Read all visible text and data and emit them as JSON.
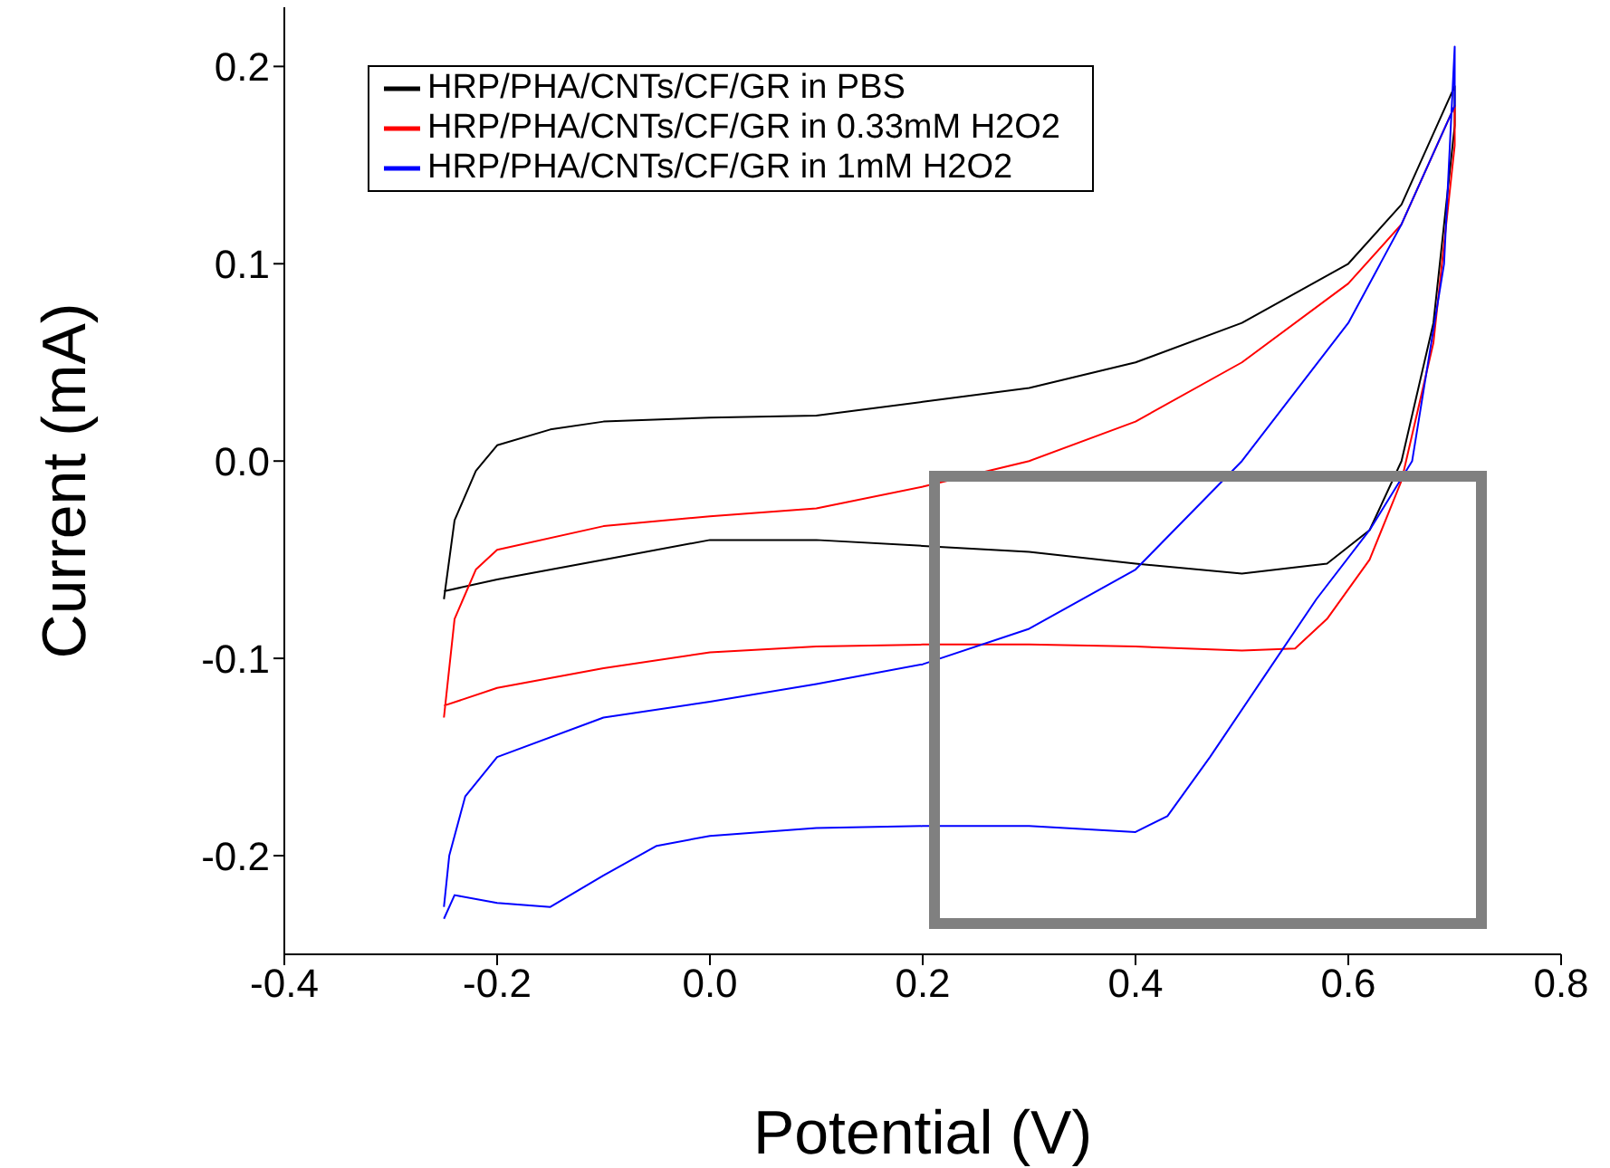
{
  "chart_data": {
    "type": "line",
    "xlabel": "Potential (V)",
    "ylabel": "Current (mA)",
    "xlim": [
      -0.4,
      0.8
    ],
    "xticks": [
      -0.4,
      -0.2,
      {
        "value": 0,
        "label": "0.0"
      },
      0.2,
      0.4,
      0.6,
      0.8
    ],
    "ylim": [
      -0.25,
      0.23
    ],
    "yticks": [
      -0.2,
      -0.1,
      {
        "value": 0,
        "label": "0.0"
      },
      0.1,
      0.2
    ],
    "grid": false,
    "legend": "top left",
    "marker": "none",
    "line_style": "solid",
    "series": [
      {
        "name": "HRP/PHA/CNTs/CF/GR in PBS",
        "color": "#000000",
        "x": [
          -0.25,
          -0.24,
          -0.22,
          -0.2,
          -0.15,
          -0.1,
          0,
          0.1,
          0.2,
          0.3,
          0.4,
          0.5,
          0.6,
          0.65,
          0.7,
          0.7,
          0.68,
          0.65,
          0.62,
          0.58,
          0.5,
          0.4,
          0.3,
          0.2,
          0.1,
          0,
          -0.1,
          -0.2,
          -0.25
        ],
        "values": [
          -0.07,
          -0.03,
          -0.005,
          0.008,
          0.016,
          0.02,
          0.022,
          0.023,
          0.03,
          0.037,
          0.05,
          0.07,
          0.1,
          0.13,
          0.19,
          0.17,
          0.07,
          0.0,
          -0.035,
          -0.052,
          -0.057,
          -0.052,
          -0.046,
          -0.043,
          -0.04,
          -0.04,
          -0.05,
          -0.06,
          -0.066
        ]
      },
      {
        "name": "HRP/PHA/CNTs/CF/GR in 0.33mM H2O2",
        "color": "#ff0000",
        "x": [
          -0.25,
          -0.24,
          -0.22,
          -0.2,
          -0.1,
          0,
          0.1,
          0.2,
          0.3,
          0.4,
          0.5,
          0.6,
          0.65,
          0.7,
          0.7,
          0.68,
          0.65,
          0.62,
          0.58,
          0.55,
          0.5,
          0.4,
          0.3,
          0.2,
          0.1,
          0,
          -0.1,
          -0.2,
          -0.25
        ],
        "values": [
          -0.13,
          -0.08,
          -0.055,
          -0.045,
          -0.033,
          -0.028,
          -0.024,
          -0.013,
          0.0,
          0.02,
          0.05,
          0.09,
          0.12,
          0.18,
          0.16,
          0.06,
          -0.01,
          -0.05,
          -0.08,
          -0.095,
          -0.096,
          -0.094,
          -0.093,
          -0.093,
          -0.094,
          -0.097,
          -0.105,
          -0.115,
          -0.124
        ]
      },
      {
        "name": "HRP/PHA/CNTs/CF/GR in 1mM H2O2",
        "color": "#0000ff",
        "x": [
          -0.25,
          -0.24,
          -0.2,
          -0.15,
          -0.1,
          -0.05,
          0,
          0.1,
          0.2,
          0.3,
          0.4,
          0.43,
          0.47,
          0.52,
          0.57,
          0.62,
          0.66,
          0.69,
          0.7,
          0.7,
          0.65,
          0.6,
          0.5,
          0.4,
          0.3,
          0.2,
          0.1,
          0,
          -0.1,
          -0.2,
          -0.23,
          -0.245,
          -0.25
        ],
        "values": [
          -0.232,
          -0.22,
          -0.224,
          -0.226,
          -0.21,
          -0.195,
          -0.19,
          -0.186,
          -0.185,
          -0.185,
          -0.188,
          -0.18,
          -0.15,
          -0.11,
          -0.07,
          -0.035,
          0.0,
          0.1,
          0.21,
          0.18,
          0.12,
          0.07,
          0.0,
          -0.055,
          -0.085,
          -0.103,
          -0.113,
          -0.122,
          -0.13,
          -0.15,
          -0.17,
          -0.2,
          -0.226
        ]
      }
    ]
  }
}
